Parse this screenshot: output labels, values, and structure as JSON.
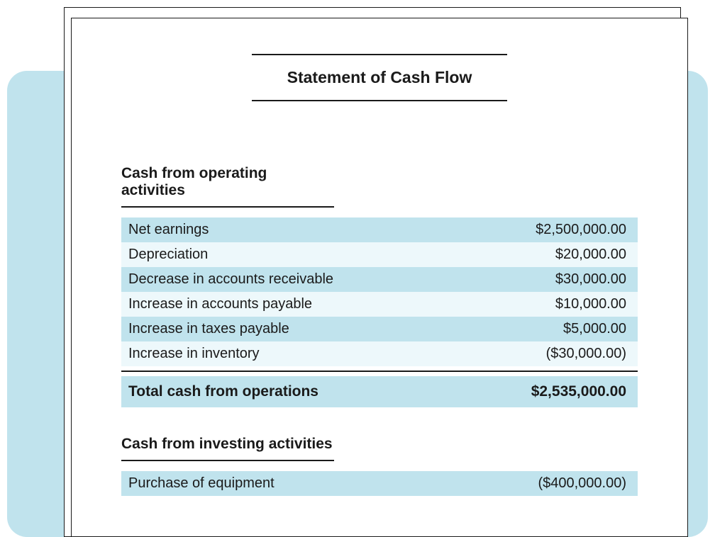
{
  "colors": {
    "bg_panel": "#c0e3ed",
    "row_dark": "#c0e3ed",
    "row_light": "#edf8fb",
    "text": "#1a1a1a",
    "border": "#1a1a1a",
    "paper": "#ffffff"
  },
  "document": {
    "title": "Statement of Cash Flow"
  },
  "sections": {
    "operating": {
      "heading": "Cash from operating activities",
      "rows": [
        {
          "label": "Net earnings",
          "value": "$2,500,000.00"
        },
        {
          "label": "Depreciation",
          "value": "$20,000.00"
        },
        {
          "label": "Decrease in accounts receivable",
          "value": "$30,000.00"
        },
        {
          "label": "Increase in accounts payable",
          "value": "$10,000.00"
        },
        {
          "label": "Increase in taxes payable",
          "value": "$5,000.00"
        },
        {
          "label": "Increase in inventory",
          "value": "($30,000.00)"
        }
      ],
      "total_label": "Total cash from operations",
      "total_value": "$2,535,000.00"
    },
    "investing": {
      "heading": "Cash from investing activities",
      "rows": [
        {
          "label": "Purchase of equipment",
          "value": "($400,000.00)"
        }
      ]
    }
  },
  "typography": {
    "title_fontsize": 23,
    "heading_fontsize": 21,
    "row_fontsize": 20,
    "total_fontsize": 21,
    "font_family": "-apple-system, Helvetica, Arial, sans-serif"
  }
}
